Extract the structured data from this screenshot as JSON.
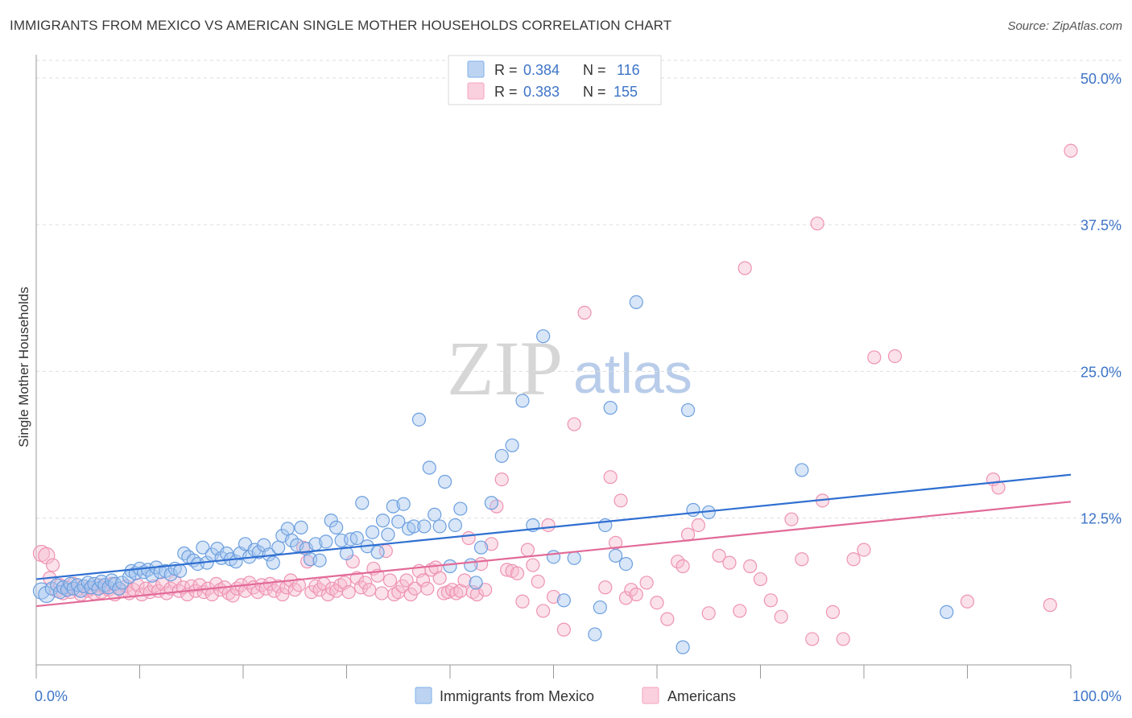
{
  "header": {
    "title": "IMMIGRANTS FROM MEXICO VS AMERICAN SINGLE MOTHER HOUSEHOLDS CORRELATION CHART",
    "source": "Source: ZipAtlas.com"
  },
  "watermark": {
    "zip": "ZIP",
    "atlas": "atlas"
  },
  "colors": {
    "blue": "#7fb0e8",
    "blue_line": "#2f6fd1",
    "pink": "#f4a3bf",
    "pink_line": "#e26a97",
    "tick_label": "#3d74c7",
    "grid": "#dddddd"
  },
  "legend_top": [
    {
      "r_label": "R = ",
      "r_value": "0.384",
      "n_label": "N = ",
      "n_value": "116"
    },
    {
      "r_label": "R = ",
      "r_value": "0.383",
      "n_label": "N = ",
      "n_value": "155"
    }
  ],
  "chart_data": {
    "type": "scatter",
    "title": "IMMIGRANTS FROM MEXICO VS AMERICAN SINGLE MOTHER HOUSEHOLDS CORRELATION CHART",
    "xlabel": "",
    "ylabel": "Single Mother Households",
    "xlim": [
      0,
      100
    ],
    "ylim": [
      0,
      51.5
    ],
    "y_ticks": [
      12.5,
      25.0,
      37.5,
      50.0
    ],
    "y_tick_labels": [
      "12.5%",
      "25.0%",
      "37.5%",
      "50.0%"
    ],
    "x_tick_labels": [
      "0.0%",
      "100.0%"
    ],
    "grid": "horizontal dashed",
    "legend_position": "top-center and bottom",
    "series": [
      {
        "name": "Immigrants from Mexico",
        "color": "#7fb0e8",
        "trend": {
          "x": [
            0,
            100
          ],
          "y": [
            7.3,
            16.2
          ]
        },
        "points": [
          [
            0.5,
            6.3
          ],
          [
            1.0,
            6.0
          ],
          [
            1.5,
            6.5
          ],
          [
            2,
            6.8
          ],
          [
            2.3,
            6.2
          ],
          [
            2.6,
            6.6
          ],
          [
            3,
            6.4
          ],
          [
            3.3,
            6.9
          ],
          [
            3.6,
            6.5
          ],
          [
            4,
            6.8
          ],
          [
            4.3,
            6.3
          ],
          [
            4.6,
            6.7
          ],
          [
            5,
            7.0
          ],
          [
            5.3,
            6.6
          ],
          [
            5.6,
            6.9
          ],
          [
            6,
            6.5
          ],
          [
            6.3,
            7.1
          ],
          [
            6.6,
            6.8
          ],
          [
            7,
            6.6
          ],
          [
            7.3,
            7.2
          ],
          [
            7.6,
            6.9
          ],
          [
            8,
            6.5
          ],
          [
            8.3,
            7.0
          ],
          [
            9,
            7.5
          ],
          [
            9.2,
            8.0
          ],
          [
            9.6,
            7.8
          ],
          [
            10,
            8.2
          ],
          [
            10.4,
            7.9
          ],
          [
            10.8,
            8.1
          ],
          [
            11.2,
            7.6
          ],
          [
            11.6,
            8.3
          ],
          [
            12,
            7.9
          ],
          [
            12.5,
            8.0
          ],
          [
            13,
            7.7
          ],
          [
            13.4,
            8.2
          ],
          [
            13.9,
            8.0
          ],
          [
            14.3,
            9.5
          ],
          [
            14.7,
            9.2
          ],
          [
            15.2,
            8.9
          ],
          [
            15.6,
            8.6
          ],
          [
            16.1,
            10.0
          ],
          [
            16.5,
            8.7
          ],
          [
            17,
            9.4
          ],
          [
            17.5,
            9.9
          ],
          [
            17.9,
            9.1
          ],
          [
            18.4,
            9.5
          ],
          [
            18.8,
            9.0
          ],
          [
            19.3,
            8.8
          ],
          [
            19.7,
            9.5
          ],
          [
            20.2,
            10.3
          ],
          [
            20.6,
            9.2
          ],
          [
            21.1,
            9.8
          ],
          [
            21.5,
            9.6
          ],
          [
            22,
            10.2
          ],
          [
            22.5,
            9.4
          ],
          [
            22.9,
            8.7
          ],
          [
            23.4,
            10.0
          ],
          [
            23.8,
            11.0
          ],
          [
            24.3,
            11.6
          ],
          [
            24.7,
            10.6
          ],
          [
            25.2,
            10.2
          ],
          [
            25.6,
            11.7
          ],
          [
            26.1,
            9.9
          ],
          [
            26.5,
            9.0
          ],
          [
            27,
            10.3
          ],
          [
            27.4,
            8.9
          ],
          [
            28,
            10.5
          ],
          [
            28.5,
            12.3
          ],
          [
            29,
            11.7
          ],
          [
            29.5,
            10.6
          ],
          [
            30,
            9.5
          ],
          [
            30.4,
            10.7
          ],
          [
            31,
            10.8
          ],
          [
            31.5,
            13.8
          ],
          [
            32,
            10.1
          ],
          [
            32.5,
            11.3
          ],
          [
            33,
            9.6
          ],
          [
            33.5,
            12.3
          ],
          [
            34,
            11.1
          ],
          [
            34.5,
            13.5
          ],
          [
            35,
            12.2
          ],
          [
            35.5,
            13.7
          ],
          [
            36,
            11.6
          ],
          [
            36.5,
            11.8
          ],
          [
            37,
            20.9
          ],
          [
            37.5,
            11.8
          ],
          [
            38,
            16.8
          ],
          [
            38.5,
            12.8
          ],
          [
            39,
            11.8
          ],
          [
            39.5,
            15.6
          ],
          [
            40,
            8.4
          ],
          [
            40.5,
            11.9
          ],
          [
            41,
            13.3
          ],
          [
            42,
            8.5
          ],
          [
            42.5,
            7.0
          ],
          [
            43,
            10.0
          ],
          [
            44,
            13.8
          ],
          [
            45,
            17.8
          ],
          [
            46,
            18.7
          ],
          [
            47,
            22.5
          ],
          [
            48,
            11.9
          ],
          [
            49,
            28.0
          ],
          [
            50,
            9.2
          ],
          [
            51,
            5.5
          ],
          [
            52,
            9.1
          ],
          [
            54,
            2.6
          ],
          [
            54.5,
            4.9
          ],
          [
            55,
            11.9
          ],
          [
            55.5,
            21.9
          ],
          [
            56,
            9.3
          ],
          [
            57,
            8.6
          ],
          [
            58,
            30.9
          ],
          [
            62.5,
            1.5
          ],
          [
            63,
            21.7
          ],
          [
            63.5,
            13.2
          ],
          [
            65,
            13.0
          ],
          [
            74,
            16.6
          ],
          [
            88,
            4.5
          ]
        ]
      },
      {
        "name": "Americans",
        "color": "#f4a3bf",
        "trend": {
          "x": [
            0,
            100
          ],
          "y": [
            5.0,
            13.9
          ]
        },
        "points": [
          [
            0.5,
            9.5
          ],
          [
            1,
            9.3
          ],
          [
            1.3,
            7.4
          ],
          [
            1.6,
            8.5
          ],
          [
            2,
            6.3
          ],
          [
            2.3,
            6.8
          ],
          [
            2.6,
            6.1
          ],
          [
            3,
            6.6
          ],
          [
            3.3,
            6.2
          ],
          [
            3.6,
            6.9
          ],
          [
            4,
            6.4
          ],
          [
            4.3,
            6.0
          ],
          [
            4.6,
            6.7
          ],
          [
            5,
            6.3
          ],
          [
            5.3,
            6.5
          ],
          [
            5.6,
            6.1
          ],
          [
            6,
            6.8
          ],
          [
            6.3,
            6.2
          ],
          [
            6.6,
            6.6
          ],
          [
            7,
            6.4
          ],
          [
            7.3,
            6.9
          ],
          [
            7.6,
            6.0
          ],
          [
            8,
            6.5
          ],
          [
            8.3,
            6.3
          ],
          [
            8.7,
            6.7
          ],
          [
            9,
            6.1
          ],
          [
            9.4,
            6.4
          ],
          [
            9.8,
            6.8
          ],
          [
            10.2,
            6.0
          ],
          [
            10.6,
            6.5
          ],
          [
            11,
            6.2
          ],
          [
            11.4,
            6.7
          ],
          [
            11.8,
            6.3
          ],
          [
            12.2,
            6.9
          ],
          [
            12.6,
            6.1
          ],
          [
            13,
            6.5
          ],
          [
            13.4,
            7.1
          ],
          [
            13.8,
            6.3
          ],
          [
            14.2,
            6.6
          ],
          [
            14.6,
            6.0
          ],
          [
            15,
            6.7
          ],
          [
            15.4,
            6.3
          ],
          [
            15.8,
            6.8
          ],
          [
            16.2,
            6.2
          ],
          [
            16.6,
            6.5
          ],
          [
            17,
            6.0
          ],
          [
            17.4,
            6.9
          ],
          [
            17.8,
            6.4
          ],
          [
            18.2,
            6.6
          ],
          [
            18.6,
            6.1
          ],
          [
            19,
            5.9
          ],
          [
            19.4,
            6.5
          ],
          [
            19.8,
            6.8
          ],
          [
            20.2,
            6.3
          ],
          [
            20.6,
            7.0
          ],
          [
            21,
            6.6
          ],
          [
            21.4,
            6.2
          ],
          [
            21.8,
            6.8
          ],
          [
            22.2,
            6.5
          ],
          [
            22.6,
            6.9
          ],
          [
            23,
            6.3
          ],
          [
            23.4,
            6.7
          ],
          [
            23.8,
            6.0
          ],
          [
            24.2,
            6.6
          ],
          [
            24.6,
            7.2
          ],
          [
            25,
            6.4
          ],
          [
            25.4,
            6.8
          ],
          [
            25.8,
            10.0
          ],
          [
            26.2,
            8.8
          ],
          [
            26.6,
            6.2
          ],
          [
            27,
            6.7
          ],
          [
            27.4,
            6.4
          ],
          [
            27.8,
            6.9
          ],
          [
            28.2,
            6.0
          ],
          [
            28.6,
            6.5
          ],
          [
            29,
            6.3
          ],
          [
            29.4,
            6.8
          ],
          [
            29.8,
            7.0
          ],
          [
            30.2,
            6.2
          ],
          [
            30.6,
            8.8
          ],
          [
            31,
            7.4
          ],
          [
            31.4,
            6.6
          ],
          [
            31.8,
            7.0
          ],
          [
            32.2,
            6.4
          ],
          [
            32.6,
            8.2
          ],
          [
            33,
            7.6
          ],
          [
            33.4,
            6.1
          ],
          [
            33.8,
            9.7
          ],
          [
            34.2,
            7.2
          ],
          [
            34.6,
            6.0
          ],
          [
            35,
            6.2
          ],
          [
            35.4,
            6.7
          ],
          [
            35.8,
            7.2
          ],
          [
            36.2,
            6.0
          ],
          [
            36.6,
            6.5
          ],
          [
            37,
            8.0
          ],
          [
            37.4,
            7.2
          ],
          [
            37.8,
            6.5
          ],
          [
            38.2,
            8.1
          ],
          [
            38.6,
            8.3
          ],
          [
            39,
            7.4
          ],
          [
            39.4,
            6.1
          ],
          [
            39.8,
            6.2
          ],
          [
            40.2,
            6.4
          ],
          [
            40.6,
            6.1
          ],
          [
            41,
            6.3
          ],
          [
            41.4,
            7.2
          ],
          [
            41.8,
            10.8
          ],
          [
            42.2,
            6.2
          ],
          [
            42.6,
            6.0
          ],
          [
            43,
            8.6
          ],
          [
            43.4,
            6.4
          ],
          [
            44,
            10.3
          ],
          [
            44.5,
            13.5
          ],
          [
            45,
            15.8
          ],
          [
            45.5,
            8.1
          ],
          [
            46,
            8.0
          ],
          [
            46.5,
            7.8
          ],
          [
            47,
            5.4
          ],
          [
            47.5,
            9.8
          ],
          [
            48,
            8.5
          ],
          [
            48.5,
            7.1
          ],
          [
            49,
            4.6
          ],
          [
            49.5,
            11.9
          ],
          [
            50,
            5.8
          ],
          [
            51,
            3.0
          ],
          [
            52,
            20.5
          ],
          [
            53,
            30.0
          ],
          [
            55,
            6.6
          ],
          [
            55.5,
            16.0
          ],
          [
            56,
            10.4
          ],
          [
            56.5,
            14.0
          ],
          [
            57,
            5.7
          ],
          [
            57.5,
            6.4
          ],
          [
            58,
            6.0
          ],
          [
            59,
            7.0
          ],
          [
            60,
            5.3
          ],
          [
            61,
            3.9
          ],
          [
            62,
            8.8
          ],
          [
            62.5,
            8.4
          ],
          [
            63,
            11.1
          ],
          [
            64,
            11.9
          ],
          [
            65,
            4.4
          ],
          [
            66,
            9.3
          ],
          [
            67,
            8.7
          ],
          [
            68,
            4.6
          ],
          [
            68.5,
            33.8
          ],
          [
            69,
            8.4
          ],
          [
            70,
            7.3
          ],
          [
            71,
            5.5
          ],
          [
            72,
            4.1
          ],
          [
            73,
            12.4
          ],
          [
            74,
            9.0
          ],
          [
            75,
            2.2
          ],
          [
            75.5,
            37.6
          ],
          [
            76,
            14.0
          ],
          [
            77,
            4.5
          ],
          [
            78,
            2.2
          ],
          [
            79,
            9.0
          ],
          [
            80,
            9.8
          ],
          [
            81,
            26.2
          ],
          [
            83,
            26.3
          ],
          [
            90,
            5.4
          ],
          [
            92.5,
            15.8
          ],
          [
            93,
            15.1
          ],
          [
            98,
            5.1
          ],
          [
            100,
            43.8
          ]
        ]
      }
    ]
  },
  "legend_bottom": [
    {
      "label": "Immigrants from Mexico"
    },
    {
      "label": "Americans"
    }
  ]
}
